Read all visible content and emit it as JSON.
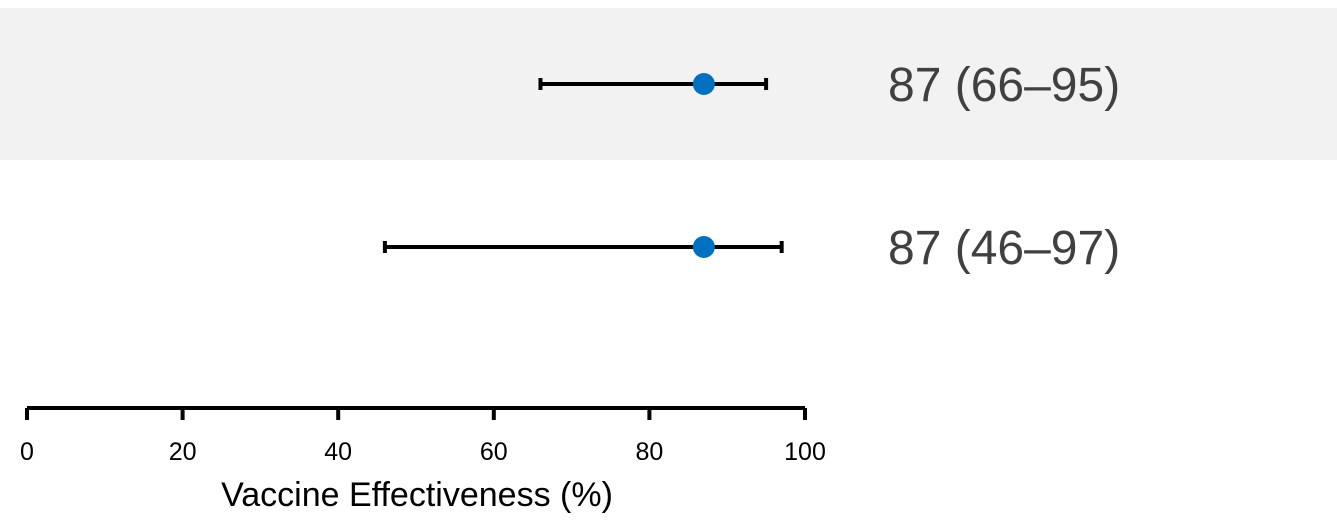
{
  "chart_data": {
    "type": "forest",
    "xlabel": "Vaccine Effectiveness (%)",
    "xlim": [
      0,
      100
    ],
    "xticks": [
      0,
      20,
      40,
      60,
      80,
      100
    ],
    "rows": [
      {
        "estimate": 87,
        "lower": 66,
        "upper": 95,
        "label": "87 (66–95)",
        "shaded": true
      },
      {
        "estimate": 87,
        "lower": 46,
        "upper": 97,
        "label": "87 (46–97)",
        "shaded": false
      }
    ],
    "colors": {
      "point": "#0070C0",
      "interval": "#000000",
      "row_shade": "#F2F2F2",
      "label": "#404040"
    }
  }
}
